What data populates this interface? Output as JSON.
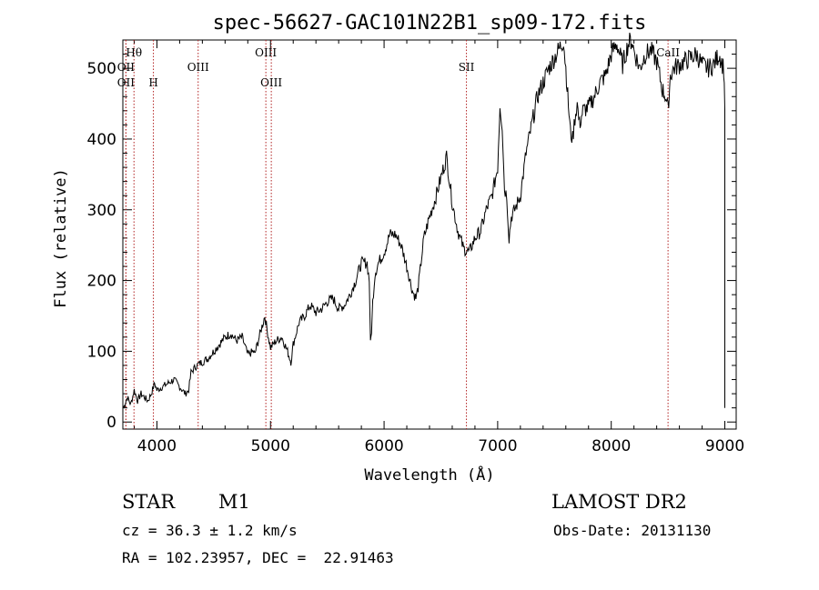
{
  "chart_data": {
    "type": "line",
    "title": "spec-56627-GAC101N22B1_sp09-172.fits",
    "xlabel": "Wavelength (Å)",
    "ylabel": "Flux (relative)",
    "xlim": [
      3700,
      9100
    ],
    "ylim": [
      -10,
      540
    ],
    "xticks": [
      4000,
      5000,
      6000,
      7000,
      8000,
      9000
    ],
    "yticks": [
      0,
      100,
      200,
      300,
      400,
      500
    ],
    "grid": false,
    "line_color": "#000000",
    "marker_color": "#b22222",
    "series": [
      {
        "x": [
          3705,
          3740,
          3770,
          3800,
          3830,
          3860,
          3890,
          3920,
          3950,
          3980,
          4000,
          4050,
          4100,
          4150,
          4200,
          4250,
          4280,
          4300,
          4350,
          4400,
          4450,
          4500,
          4550,
          4600,
          4650,
          4700,
          4750,
          4800,
          4850,
          4860,
          4900,
          4950,
          4970,
          5000,
          5050,
          5100,
          5150,
          5180,
          5200,
          5250,
          5300,
          5350,
          5400,
          5450,
          5500,
          5550,
          5600,
          5650,
          5700,
          5750,
          5800,
          5850,
          5870,
          5880,
          5890,
          5900,
          5920,
          5950,
          6000,
          6050,
          6100,
          6150,
          6200,
          6250,
          6280,
          6300,
          6350,
          6400,
          6450,
          6500,
          6550,
          6600,
          6650,
          6700,
          6750,
          6800,
          6850,
          6900,
          6950,
          7000,
          7020,
          7040,
          7060,
          7080,
          7100,
          7120,
          7150,
          7200,
          7250,
          7300,
          7350,
          7400,
          7450,
          7500,
          7550,
          7580,
          7600,
          7640,
          7660,
          7680,
          7700,
          7720,
          7750,
          7800,
          7850,
          7900,
          7950,
          8000,
          8050,
          8100,
          8150,
          8180,
          8200,
          8250,
          8300,
          8350,
          8400,
          8450,
          8480,
          8500,
          8520,
          8550,
          8600,
          8650,
          8700,
          8750,
          8800,
          8850,
          8900,
          8950,
          8990,
          9000,
          9000
        ],
        "y": [
          20,
          35,
          25,
          45,
          30,
          40,
          35,
          30,
          40,
          55,
          45,
          50,
          55,
          60,
          50,
          40,
          45,
          70,
          80,
          85,
          90,
          100,
          110,
          120,
          125,
          115,
          120,
          95,
          100,
          95,
          120,
          150,
          130,
          105,
          115,
          120,
          100,
          85,
          110,
          140,
          150,
          165,
          155,
          160,
          170,
          175,
          160,
          165,
          180,
          200,
          225,
          225,
          200,
          110,
          130,
          170,
          210,
          225,
          240,
          265,
          265,
          250,
          220,
          185,
          175,
          190,
          260,
          290,
          315,
          345,
          375,
          310,
          270,
          245,
          240,
          260,
          270,
          300,
          320,
          360,
          450,
          420,
          330,
          320,
          260,
          290,
          300,
          320,
          380,
          420,
          460,
          480,
          500,
          515,
          530,
          540,
          500,
          410,
          400,
          430,
          450,
          420,
          440,
          445,
          460,
          480,
          490,
          520,
          535,
          505,
          535,
          540,
          525,
          500,
          520,
          525,
          510,
          470,
          460,
          440,
          490,
          500,
          505,
          510,
          515,
          520,
          505,
          500,
          505,
          520,
          500,
          450,
          20
        ]
      }
    ],
    "markers": [
      {
        "label": "Hθ",
        "x": 3798,
        "row": 1
      },
      {
        "label": "OII",
        "x": 3727,
        "row": 2
      },
      {
        "label": "OII",
        "x": 3727,
        "row": 3
      },
      {
        "label": "H",
        "x": 3969,
        "row": 3
      },
      {
        "label": "OIII",
        "x": 4363,
        "row": 2
      },
      {
        "label": "OIII",
        "x": 4959,
        "row": 1
      },
      {
        "label": "OIII",
        "x": 5007,
        "row": 3
      },
      {
        "label": "SII",
        "x": 6725,
        "row": 2
      },
      {
        "label": "CaII",
        "x": 8500,
        "row": 1
      }
    ]
  },
  "info": {
    "object_class": "STAR",
    "subclass": "M1",
    "survey": "LAMOST DR2",
    "cz": "cz = 36.3 ± 1.2 km/s",
    "obs_date": "Obs-Date: 20131130",
    "coords": "RA = 102.23957, DEC =  22.91463"
  }
}
